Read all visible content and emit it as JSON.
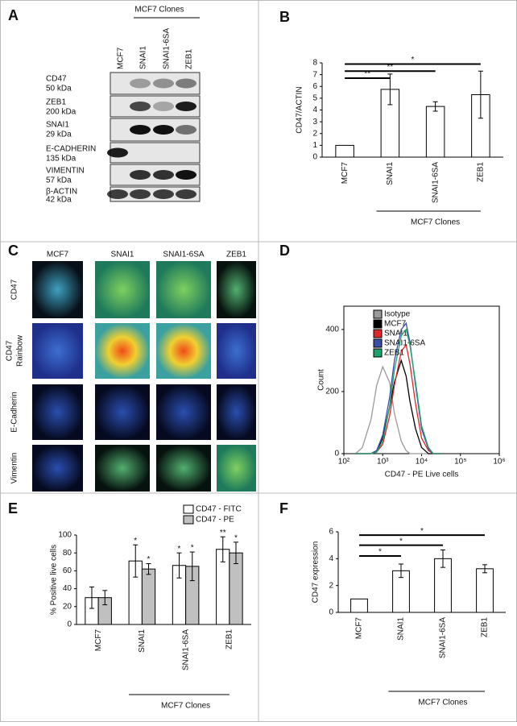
{
  "panel_a": {
    "label": "A",
    "header": "MCF7 Clones",
    "lanes": [
      "MCF7",
      "SNAI1",
      "SNAI1-6SA",
      "ZEB1"
    ],
    "rows": [
      {
        "protein": "CD47",
        "size": "50 kDa"
      },
      {
        "protein": "ZEB1",
        "size": "200 kDa"
      },
      {
        "protein": "SNAI1",
        "size": "29 kDa"
      },
      {
        "protein": "E-CADHERIN",
        "size": "135 kDa"
      },
      {
        "protein": "VIMENTIN",
        "size": "57 kDa"
      },
      {
        "protein": "β-ACTIN",
        "size": "42 kDa"
      }
    ]
  },
  "panel_c": {
    "label": "C",
    "columns": [
      "MCF7",
      "SNAI1",
      "SNAI1-6SA",
      "ZEB1"
    ],
    "rows": [
      [
        "CD47"
      ],
      [
        "CD47",
        "Rainbow"
      ],
      [
        "E-Cadherin"
      ],
      [
        "Vimentin"
      ]
    ]
  },
  "chart_data": [
    {
      "panel": "B",
      "type": "bar",
      "ylabel": "CD47/ACTIN",
      "xlabel": "MCF7 Clones",
      "categories": [
        "MCF7",
        "SNAI1",
        "SNAI1-6SA",
        "ZEB1"
      ],
      "values": [
        1,
        5.75,
        4.3,
        5.3
      ],
      "errors": [
        null,
        1.3,
        0.4,
        2.0
      ],
      "color": "#ffffff",
      "ylim": [
        0,
        8
      ],
      "yticks": [
        0,
        1,
        2,
        3,
        4,
        5,
        6,
        7,
        8
      ],
      "annotations": [
        {
          "text": "**",
          "from": 0,
          "to": 1,
          "y": 6.7
        },
        {
          "text": "**",
          "from": 0,
          "to": 2,
          "y": 7.3
        },
        {
          "text": "*",
          "from": 0,
          "to": 3,
          "y": 7.9
        }
      ]
    },
    {
      "panel": "D",
      "type": "line",
      "ylabel": "Count",
      "xlabel": "CD47 - PE Live cells",
      "log_x": true,
      "x": [
        200,
        300,
        500,
        700,
        1000,
        1500,
        2000,
        3000,
        4000,
        5000,
        7000,
        10000,
        15000,
        20000,
        30000
      ],
      "series": [
        {
          "name": "Isotype",
          "color": "#9a9a9a",
          "values": [
            0,
            20,
            110,
            220,
            280,
            230,
            130,
            40,
            10,
            0,
            0,
            0,
            0,
            0,
            0
          ]
        },
        {
          "name": "MCF7",
          "color": "#000000",
          "values": [
            0,
            0,
            0,
            10,
            50,
            150,
            230,
            300,
            250,
            170,
            80,
            20,
            0,
            0,
            0
          ]
        },
        {
          "name": "SNAI1",
          "color": "#e0262a",
          "values": [
            0,
            0,
            0,
            5,
            30,
            120,
            220,
            330,
            350,
            290,
            160,
            50,
            10,
            0,
            0
          ]
        },
        {
          "name": "SNAI1-6SA",
          "color": "#3a4fa8",
          "values": [
            0,
            0,
            0,
            10,
            60,
            180,
            300,
            400,
            420,
            360,
            220,
            80,
            15,
            0,
            0
          ]
        },
        {
          "name": "ZEB1",
          "color": "#1aa36a",
          "values": [
            0,
            0,
            0,
            5,
            40,
            150,
            270,
            380,
            400,
            350,
            230,
            90,
            20,
            0,
            0
          ]
        }
      ],
      "xlim": [
        100,
        1000000
      ],
      "xticks": [
        {
          "value": 100,
          "label": "10²"
        },
        {
          "value": 1000,
          "label": "10³"
        },
        {
          "value": 10000,
          "label": "10⁴"
        },
        {
          "value": 100000,
          "label": "10⁵"
        },
        {
          "value": 1000000,
          "label": "10⁶"
        }
      ],
      "ylim": [
        0,
        475
      ],
      "yticks": [
        0,
        200,
        400
      ]
    },
    {
      "panel": "E",
      "type": "bar",
      "ylabel": "% Positive live cells",
      "xlabel": "MCF7 Clones",
      "categories": [
        "MCF7",
        "SNAI1",
        "SNAI1-6SA",
        "ZEB1"
      ],
      "series": [
        {
          "name": "CD47 - FITC",
          "color": "#ffffff",
          "values": [
            30,
            71,
            66,
            84
          ],
          "errors": [
            12,
            18,
            14,
            14
          ],
          "stars": [
            null,
            "*",
            "*",
            "**"
          ]
        },
        {
          "name": "CD47 - PE",
          "color": "#c0c0c0",
          "values": [
            30,
            62,
            65,
            80
          ],
          "errors": [
            8,
            6,
            16,
            12
          ],
          "stars": [
            null,
            "*",
            "*",
            "*"
          ]
        }
      ],
      "ylim": [
        0,
        100
      ],
      "yticks": [
        0,
        20,
        40,
        60,
        80,
        100
      ]
    },
    {
      "panel": "F",
      "type": "bar",
      "ylabel": "CD47 expression",
      "xlabel": "MCF7 Clones",
      "categories": [
        "MCF7",
        "SNAI1",
        "SNAI1-6SA",
        "ZEB1"
      ],
      "values": [
        1,
        3.1,
        4.0,
        3.25
      ],
      "errors": [
        null,
        0.5,
        0.65,
        0.3
      ],
      "color": "#ffffff",
      "ylim": [
        0,
        6
      ],
      "yticks": [
        0,
        2,
        4,
        6
      ],
      "annotations": [
        {
          "text": "*",
          "from": 0,
          "to": 1,
          "y": 4.2
        },
        {
          "text": "*",
          "from": 0,
          "to": 2,
          "y": 5.0
        },
        {
          "text": "*",
          "from": 0,
          "to": 3,
          "y": 5.75
        }
      ]
    }
  ]
}
